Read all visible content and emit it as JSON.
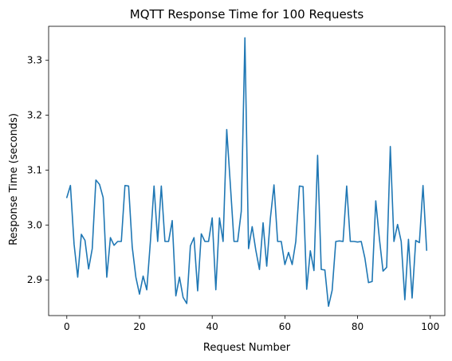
{
  "chart_data": {
    "type": "line",
    "title": "MQTT Response Time for 100 Requests",
    "xlabel": "Request Number",
    "ylabel": "Response Time (seconds)",
    "xlim": [
      -5,
      104
    ],
    "ylim": [
      2.835,
      3.362
    ],
    "xticks": [
      0,
      20,
      40,
      60,
      80,
      100
    ],
    "yticks": [
      2.9,
      3.0,
      3.1,
      3.2,
      3.3
    ],
    "ytick_labels": [
      "2.9",
      "3.0",
      "3.1",
      "3.2",
      "3.3"
    ],
    "grid": false,
    "series": [
      {
        "color": "#1f77b4",
        "x": [
          0,
          1,
          2,
          3,
          4,
          5,
          6,
          7,
          8,
          9,
          10,
          11,
          12,
          13,
          14,
          15,
          16,
          17,
          18,
          19,
          20,
          21,
          22,
          23,
          24,
          25,
          26,
          27,
          28,
          29,
          30,
          31,
          32,
          33,
          34,
          35,
          36,
          37,
          38,
          39,
          40,
          41,
          42,
          43,
          44,
          45,
          46,
          47,
          48,
          49,
          50,
          51,
          52,
          53,
          54,
          55,
          56,
          57,
          58,
          59,
          60,
          61,
          62,
          63,
          64,
          65,
          66,
          67,
          68,
          69,
          70,
          71,
          72,
          73,
          74,
          75,
          76,
          77,
          78,
          79,
          80,
          81,
          82,
          83,
          84,
          85,
          86,
          87,
          88,
          89,
          90,
          91,
          92,
          93,
          94,
          95,
          96,
          97,
          98,
          99
        ],
        "values": [
          3.05,
          3.072,
          2.965,
          2.905,
          2.983,
          2.972,
          2.92,
          2.957,
          3.082,
          3.074,
          3.05,
          2.905,
          2.977,
          2.963,
          2.97,
          2.97,
          3.072,
          3.071,
          2.96,
          2.905,
          2.874,
          2.907,
          2.882,
          2.97,
          3.071,
          2.97,
          3.071,
          2.97,
          2.97,
          3.008,
          2.871,
          2.905,
          2.868,
          2.857,
          2.962,
          2.977,
          2.88,
          2.984,
          2.97,
          2.97,
          3.013,
          2.882,
          3.013,
          2.97,
          3.174,
          3.073,
          2.97,
          2.97,
          3.025,
          3.341,
          2.957,
          2.997,
          2.954,
          2.919,
          3.004,
          2.925,
          3.012,
          3.073,
          2.97,
          2.97,
          2.928,
          2.95,
          2.928,
          2.97,
          3.071,
          3.07,
          2.883,
          2.953,
          2.917,
          3.127,
          2.919,
          2.918,
          2.852,
          2.881,
          2.97,
          2.971,
          2.97,
          3.071,
          2.97,
          2.97,
          2.969,
          2.97,
          2.94,
          2.895,
          2.897,
          3.044,
          2.975,
          2.916,
          2.923,
          3.143,
          2.97,
          3.001,
          2.97,
          2.864,
          2.974,
          2.867,
          2.972,
          2.968,
          3.072,
          2.954
        ]
      }
    ]
  }
}
